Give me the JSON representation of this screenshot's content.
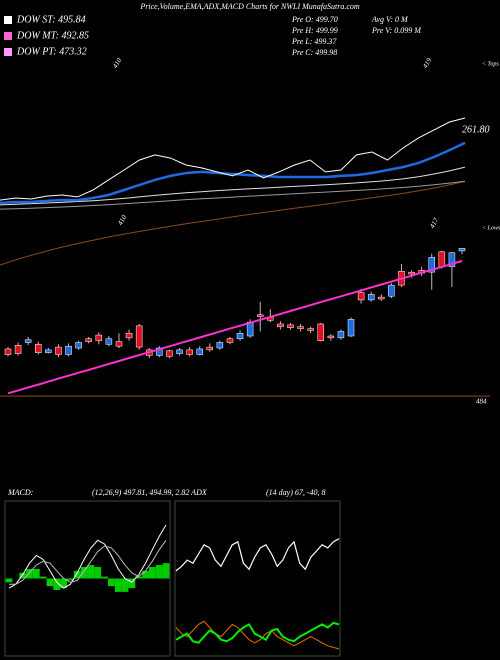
{
  "header": {
    "title": "Price,Volume,EMA,ADX,MACD Charts for NWLI MunafaSutra.com",
    "dow": [
      {
        "text": "DOW ST: 495.84",
        "color": "#ffffff"
      },
      {
        "text": "DOW MT: 492.85",
        "color": "#ff66cc"
      },
      {
        "text": "DOW PT: 473.32",
        "color": "#ff99ff"
      }
    ],
    "pre": [
      "Pre  O: 499.70",
      "Pre  H: 499.99",
      "Pre  L: 499.37",
      "Pre  C: 499.98"
    ],
    "volume": [
      "Avg V: 0  M",
      "Pre  V: 0.099 M"
    ],
    "macd_label": "MACD:",
    "macd_params": "(12,26,9) 497.81, 494.99, 2.82 ADX",
    "adx_params": "(14 day) 67, -40, 8"
  },
  "chart_data": [
    {
      "type": "line",
      "side_label": "< Tops",
      "date_labels": [
        "410",
        "419"
      ],
      "price_label": "261.80",
      "ylim": [
        0,
        100
      ],
      "series": [
        {
          "color": "#ffffff",
          "values": [
            33.3,
            34.3,
            33.8,
            35.2,
            35.7,
            34.8,
            38.1,
            42.9,
            47.6,
            52.4,
            54.8,
            53.3,
            50.0,
            48.6,
            46.7,
            44.8,
            47.6,
            43.8,
            46.7,
            50.0,
            52.4,
            46.7,
            47.6,
            54.8,
            56.2,
            52.4,
            58.1,
            62.9,
            66.7,
            70.5,
            72.4
          ]
        },
        {
          "color": "#1e6be0",
          "values": [
            31.9,
            32.4,
            32.4,
            32.9,
            33.3,
            33.3,
            34.3,
            35.7,
            38.1,
            40.5,
            42.9,
            44.8,
            46.2,
            46.7,
            46.2,
            45.7,
            45.2,
            44.8,
            44.3,
            44.3,
            44.3,
            44.3,
            44.8,
            45.2,
            46.2,
            47.6,
            49.0,
            51.0,
            53.8,
            57.1,
            60.5
          ]
        },
        {
          "color": "#e0e0e0",
          "values": [
            31.0,
            31.3,
            31.6,
            31.9,
            32.2,
            32.6,
            33.0,
            33.5,
            34.1,
            34.8,
            35.5,
            36.2,
            36.8,
            37.3,
            37.8,
            38.2,
            38.6,
            39.0,
            39.4,
            39.8,
            40.2,
            40.6,
            41.0,
            41.5,
            42.0,
            42.6,
            43.4,
            44.4,
            45.7,
            47.2,
            49.0
          ]
        },
        {
          "color": "#9a9a9a",
          "values": [
            29.0,
            29.2,
            29.4,
            29.7,
            30.0,
            30.3,
            30.7,
            31.1,
            31.5,
            32.0,
            32.5,
            33.0,
            33.5,
            33.9,
            34.3,
            34.7,
            35.1,
            35.5,
            35.9,
            36.3,
            36.7,
            37.1,
            37.5,
            37.9,
            38.3,
            38.8,
            39.3,
            39.9,
            40.6,
            41.4,
            42.3
          ]
        },
        {
          "color": "#8b4a1a",
          "values": [
            2.4,
            4.8,
            7.0,
            9.0,
            10.9,
            12.6,
            14.2,
            15.7,
            17.1,
            18.4,
            19.6,
            20.8,
            22.0,
            23.1,
            24.2,
            25.3,
            26.4,
            27.4,
            28.4,
            29.4,
            30.4,
            31.4,
            32.4,
            33.4,
            34.4,
            35.4,
            36.5,
            37.7,
            39.0,
            40.5,
            42.2
          ]
        }
      ]
    },
    {
      "type": "candlestick",
      "side_label": "< Lows",
      "date_labels": [
        "410",
        "417"
      ],
      "ylim": [
        482.5,
        502.5
      ],
      "hline": 484,
      "hline_color": "#8b4a1a",
      "up_color": "#1e6be0",
      "down_color": "#e01020",
      "open": [
        489.1,
        489.5,
        489.8,
        489.6,
        488.7,
        489.3,
        488.5,
        489.2,
        490.2,
        490.6,
        489.6,
        489.9,
        490.8,
        491.6,
        489.0,
        488.4,
        488.9,
        488.6,
        489.0,
        488.5,
        489.3,
        489.2,
        490.2,
        490.2,
        490.5,
        492.8,
        492.5,
        491.8,
        491.7,
        491.5,
        491.3,
        491.8,
        490.5,
        490.3,
        490.5,
        495.2,
        494.4,
        494.7,
        494.8,
        497.5,
        497.4,
        497.6,
        497.4,
        499.6,
        498.0,
        499.7
      ],
      "high": [
        489.3,
        489.8,
        490.4,
        489.9,
        489.2,
        489.6,
        489.7,
        490.0,
        490.4,
        490.9,
        490.5,
        490.8,
        491.2,
        491.8,
        489.2,
        489.4,
        489.0,
        489.2,
        489.3,
        489.4,
        489.7,
        490.0,
        490.4,
        491.1,
        492.3,
        494.2,
        493.4,
        492.1,
        491.9,
        491.8,
        491.5,
        491.9,
        490.7,
        491.2,
        492.5,
        495.6,
        495.3,
        495.0,
        496.2,
        498.3,
        497.6,
        498.0,
        499.4,
        499.7,
        499.6,
        499.99
      ],
      "low": [
        488.3,
        488.4,
        489.5,
        488.5,
        488.6,
        488.2,
        488.3,
        489.0,
        489.7,
        489.6,
        489.4,
        489.2,
        490.0,
        489.0,
        488.1,
        488.2,
        488.1,
        488.4,
        488.3,
        488.4,
        488.8,
        489.0,
        489.6,
        490.0,
        490.3,
        491.0,
        492.0,
        491.2,
        491.2,
        491.0,
        490.8,
        489.9,
        490.0,
        490.1,
        490.4,
        494.0,
        494.2,
        494.3,
        494.6,
        495.8,
        496.8,
        497.0,
        495.5,
        497.8,
        495.8,
        499.37
      ],
      "close": [
        488.5,
        488.6,
        490.1,
        488.7,
        489.0,
        488.5,
        489.4,
        489.8,
        489.9,
        490.0,
        490.2,
        489.4,
        490.3,
        489.3,
        488.4,
        489.2,
        488.3,
        489.0,
        488.5,
        489.1,
        489.0,
        489.8,
        489.8,
        490.8,
        492.0,
        492.6,
        492.2,
        491.5,
        491.4,
        491.3,
        491.1,
        490.0,
        490.3,
        491.0,
        492.3,
        494.4,
        495.0,
        494.5,
        496.0,
        496.0,
        497.2,
        497.3,
        499.0,
        498.0,
        499.5,
        499.98
      ],
      "series": [
        {
          "color": "#ff33cc",
          "values": [
            484.3,
            484.62,
            484.94,
            485.25,
            485.57,
            485.89,
            486.21,
            486.53,
            486.84,
            487.16,
            487.48,
            487.8,
            488.12,
            488.43,
            488.75,
            489.07,
            489.39,
            489.71,
            490.02,
            490.34,
            490.66,
            490.98,
            491.3,
            491.61,
            491.93,
            492.25,
            492.57,
            492.89,
            493.2,
            493.52,
            493.84,
            494.16,
            494.48,
            494.79,
            495.11,
            495.43,
            495.75,
            496.07,
            496.38,
            496.7,
            497.02,
            497.34,
            497.66,
            497.97,
            498.29,
            498.61
          ]
        }
      ]
    },
    {
      "type": "macd",
      "ylim": [
        -4,
        4
      ],
      "hist_color": "#00cc00",
      "histogram": [
        -0.2,
        0.0,
        0.3,
        0.5,
        0.5,
        0.1,
        -0.4,
        -0.6,
        -0.5,
        -0.1,
        0.4,
        0.6,
        0.7,
        0.6,
        0.1,
        -0.4,
        -0.7,
        -0.7,
        -0.5,
        0.1,
        0.4,
        0.6,
        0.7,
        0.8
      ],
      "series": [
        {
          "color": "#ffffff",
          "values": [
            -0.5,
            -0.3,
            0.2,
            0.8,
            1.2,
            1.0,
            0.4,
            -0.2,
            -0.5,
            -0.3,
            0.3,
            1.0,
            1.6,
            2.0,
            1.8,
            1.2,
            0.5,
            0.0,
            -0.2,
            0.2,
            0.8,
            1.5,
            2.2,
            2.8
          ]
        },
        {
          "color": "#bbbbbb",
          "values": [
            -0.3,
            -0.3,
            -0.1,
            0.3,
            0.7,
            0.9,
            0.8,
            0.4,
            0.0,
            -0.2,
            -0.1,
            0.4,
            0.9,
            1.4,
            1.7,
            1.6,
            1.2,
            0.7,
            0.3,
            0.1,
            0.4,
            0.9,
            1.5,
            2.0
          ]
        }
      ]
    },
    {
      "type": "line",
      "ylim": [
        0,
        100
      ],
      "series": [
        {
          "color": "#ffffff",
          "values": [
            55,
            58,
            62,
            60,
            66,
            72,
            70,
            62,
            58,
            65,
            72,
            74,
            60,
            56,
            64,
            70,
            72,
            66,
            58,
            62,
            70,
            74,
            60,
            56,
            64,
            68,
            72,
            70,
            74,
            76
          ]
        },
        {
          "color": "#00ee00",
          "values": [
            10,
            12,
            14,
            9,
            8,
            12,
            16,
            14,
            10,
            9,
            11,
            15,
            18,
            20,
            14,
            12,
            10,
            16,
            17,
            12,
            10,
            9,
            12,
            14,
            16,
            18,
            20,
            18,
            21,
            20
          ]
        },
        {
          "color": "#e07000",
          "values": [
            18,
            14,
            12,
            16,
            20,
            22,
            18,
            14,
            12,
            16,
            20,
            18,
            14,
            10,
            8,
            10,
            14,
            16,
            12,
            10,
            8,
            6,
            8,
            10,
            12,
            10,
            8,
            6,
            5,
            4
          ]
        }
      ]
    }
  ]
}
